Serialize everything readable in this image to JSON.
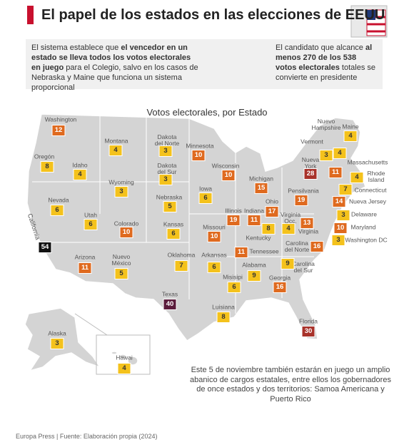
{
  "header": {
    "title": "El papel de los estados en las elecciones de EEUU"
  },
  "intro": {
    "left": [
      "El sistema establece que ",
      "el vencedor en un estado se lleva todos los votos electorales en juego",
      " para el Colegio, salvo en los casos de Nebraska y Maine que funciona un sistema proporcional"
    ],
    "right": [
      "El candidato que alcance ",
      "al menos 270 de los 538 votos electorales",
      " totales se convierte en presidente"
    ]
  },
  "map": {
    "title": "Votos electorales, por Estado",
    "states": [
      {
        "name": "Washington",
        "votes": 12
      },
      {
        "name": "Montana",
        "votes": 4
      },
      {
        "name": "Dakota del Norte",
        "votes": 3
      },
      {
        "name": "Minnesota",
        "votes": 10
      },
      {
        "name": "Oregón",
        "votes": 8
      },
      {
        "name": "Idaho",
        "votes": 4
      },
      {
        "name": "Dakota del Sur",
        "votes": 3
      },
      {
        "name": "Wisconsin",
        "votes": 10
      },
      {
        "name": "Wyoming",
        "votes": 3
      },
      {
        "name": "Michigan",
        "votes": 15
      },
      {
        "name": "Iowa",
        "votes": 6
      },
      {
        "name": "Nevada",
        "votes": 6
      },
      {
        "name": "Nebraska",
        "votes": 5
      },
      {
        "name": "Utah",
        "votes": 6
      },
      {
        "name": "Colorado",
        "votes": 10
      },
      {
        "name": "Kansas",
        "votes": 6
      },
      {
        "name": "Illinois",
        "votes": 19
      },
      {
        "name": "Indiana",
        "votes": 11
      },
      {
        "name": "Ohio",
        "votes": 17
      },
      {
        "name": "Missouri",
        "votes": 10
      },
      {
        "name": "Kentucky",
        "votes": 8
      },
      {
        "name": "California",
        "votes": 54
      },
      {
        "name": "Arizona",
        "votes": 11
      },
      {
        "name": "Nuevo México",
        "votes": 5
      },
      {
        "name": "Oklahoma",
        "votes": 7
      },
      {
        "name": "Arkansas",
        "votes": 6
      },
      {
        "name": "Tennessee",
        "votes": 11
      },
      {
        "name": "Alabama",
        "votes": 9
      },
      {
        "name": "Misisipi",
        "votes": 6
      },
      {
        "name": "Georgia",
        "votes": 16
      },
      {
        "name": "Carolina del Sur",
        "votes": 9
      },
      {
        "name": "Carolina del Norte",
        "votes": 16
      },
      {
        "name": "Virginia",
        "votes": 13
      },
      {
        "name": "Virginia Occ.",
        "votes": 4
      },
      {
        "name": "Pensilvania",
        "votes": 19
      },
      {
        "name": "Nueva York",
        "votes": 28
      },
      {
        "name": "Texas",
        "votes": 40
      },
      {
        "name": "Luisiana",
        "votes": 8
      },
      {
        "name": "Florida",
        "votes": 30
      },
      {
        "name": "Alaska",
        "votes": 3
      },
      {
        "name": "Hawai",
        "votes": 4
      },
      {
        "name": "Nuevo Hampshire",
        "votes": 4
      },
      {
        "name": "Vermont",
        "votes": 3
      },
      {
        "name": "Maine",
        "votes": 4
      },
      {
        "name": "Massachusetts",
        "votes": 11
      },
      {
        "name": "Rhode Island",
        "votes": 4
      },
      {
        "name": "Connecticut",
        "votes": 7
      },
      {
        "name": "Nueva Jersey",
        "votes": 14
      },
      {
        "name": "Delaware",
        "votes": 3
      },
      {
        "name": "Maryland",
        "votes": 10
      },
      {
        "name": "Washington DC",
        "votes": 3
      }
    ]
  },
  "note": "Este 5 de noviembre también estarán en juego un amplio abanico de cargos estatales, entre ellos los gobernadores de once estados y dos territorios: Samoa Americana y Puerto Rico",
  "source": "Europa Press | Fuente: Elaboración propia (2024)"
}
